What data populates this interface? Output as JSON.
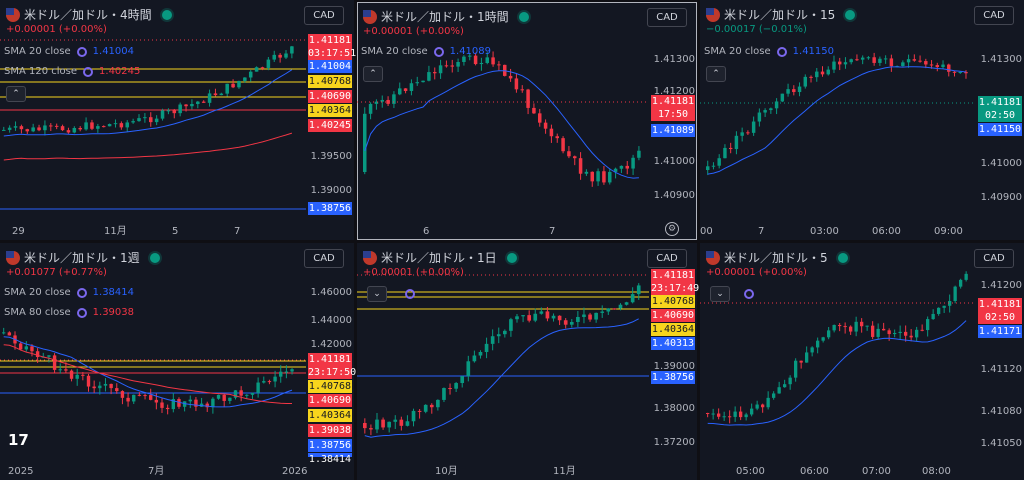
{
  "colors": {
    "up": "#089981",
    "down": "#f23645",
    "blue": "#2962ff",
    "yellow": "#f7d51d",
    "bg": "#131722"
  },
  "panels": [
    {
      "title": "米ドル／加ドル・4時間",
      "change": "+0.00001 (+0.00%)",
      "change_color": "#f23645",
      "currency": "CAD",
      "sma": [
        {
          "label": "SMA 20 close",
          "value": "1.41004",
          "color": "#2962ff"
        },
        {
          "label": "SMA 120 close",
          "value": "1.40245",
          "color": "#f23645"
        }
      ],
      "y_ticks": [
        "1.39500",
        "1.39000"
      ],
      "x_ticks": [
        "29",
        "11月",
        "5",
        "7"
      ],
      "tags": [
        {
          "text": "1.41181",
          "style": "red"
        },
        {
          "text": "03:17:51",
          "style": "red"
        },
        {
          "text": "1.41004",
          "style": "blue"
        },
        {
          "text": "1.40768",
          "style": "yellow"
        },
        {
          "text": "1.40690",
          "style": "red"
        },
        {
          "text": "1.40364",
          "style": "yellow"
        },
        {
          "text": "1.40245",
          "style": "red"
        },
        {
          "text": "1.38756",
          "style": "blue"
        }
      ]
    },
    {
      "title": "米ドル／加ドル・1時間",
      "change": "+0.00001 (+0.00%)",
      "change_color": "#f23645",
      "currency": "CAD",
      "sma": [
        {
          "label": "SMA 20 close",
          "value": "1.41089",
          "color": "#2962ff"
        }
      ],
      "y_ticks": [
        "1.41300",
        "1.41200",
        "1.41000",
        "1.40900"
      ],
      "x_ticks": [
        "6",
        "7"
      ],
      "tags": [
        {
          "text": "1.41181",
          "style": "red"
        },
        {
          "text": "17:50",
          "style": "red"
        },
        {
          "text": "1.41089",
          "style": "blue"
        }
      ]
    },
    {
      "title": "米ドル／加ドル・15",
      "change": "−0.00017 (−0.01%)",
      "change_color": "#089981",
      "currency": "CAD",
      "sma": [
        {
          "label": "SMA 20 close",
          "value": "1.41150",
          "color": "#2962ff"
        }
      ],
      "y_ticks": [
        "1.41300",
        "1.41000",
        "1.40900"
      ],
      "x_ticks": [
        "00",
        "7",
        "03:00",
        "06:00",
        "09:00"
      ],
      "tags": [
        {
          "text": "1.41181",
          "style": "green"
        },
        {
          "text": "02:50",
          "style": "green"
        },
        {
          "text": "1.41150",
          "style": "blue"
        }
      ]
    },
    {
      "title": "米ドル／加ドル・1週",
      "change": "+0.01077 (+0.77%)",
      "change_color": "#f23645",
      "currency": "CAD",
      "sma": [
        {
          "label": "SMA 20 close",
          "value": "1.38414",
          "color": "#2962ff"
        },
        {
          "label": "SMA 80 close",
          "value": "1.39038",
          "color": "#f23645"
        }
      ],
      "y_ticks": [
        "1.46000",
        "1.44000",
        "1.42000"
      ],
      "x_ticks": [
        "2025",
        "7月",
        "2026"
      ],
      "tags": [
        {
          "text": "1.41181",
          "style": "red"
        },
        {
          "text": "23:17:50",
          "style": "red"
        },
        {
          "text": "1.40768",
          "style": "yellow"
        },
        {
          "text": "1.40690",
          "style": "red"
        },
        {
          "text": "1.40364",
          "style": "yellow"
        },
        {
          "text": "1.39038",
          "style": "red"
        },
        {
          "text": "1.38756",
          "style": "blue"
        },
        {
          "text": "1.38414",
          "style": "blue"
        }
      ]
    },
    {
      "title": "米ドル／加ドル・1日",
      "change": "+0.00001 (+0.00%)",
      "change_color": "#f23645",
      "currency": "CAD",
      "sma": [],
      "y_ticks": [
        "1.39000",
        "1.38000",
        "1.37200"
      ],
      "x_ticks": [
        "10月",
        "11月"
      ],
      "tags": [
        {
          "text": "1.41181",
          "style": "red"
        },
        {
          "text": "23:17:49",
          "style": "red"
        },
        {
          "text": "1.40768",
          "style": "yellow"
        },
        {
          "text": "1.40690",
          "style": "red"
        },
        {
          "text": "1.40364",
          "style": "yellow"
        },
        {
          "text": "1.40313",
          "style": "blue"
        },
        {
          "text": "1.38756",
          "style": "blue"
        }
      ]
    },
    {
      "title": "米ドル／加ドル・5",
      "change": "+0.00001 (+0.00%)",
      "change_color": "#f23645",
      "currency": "CAD",
      "sma": [],
      "y_ticks": [
        "1.41200",
        "1.41120",
        "1.41080",
        "1.41050"
      ],
      "x_ticks": [
        "05:00",
        "06:00",
        "07:00",
        "08:00"
      ],
      "tags": [
        {
          "text": "1.41181",
          "style": "red"
        },
        {
          "text": "02:50",
          "style": "red"
        },
        {
          "text": "1.41171",
          "style": "blue"
        }
      ]
    }
  ]
}
